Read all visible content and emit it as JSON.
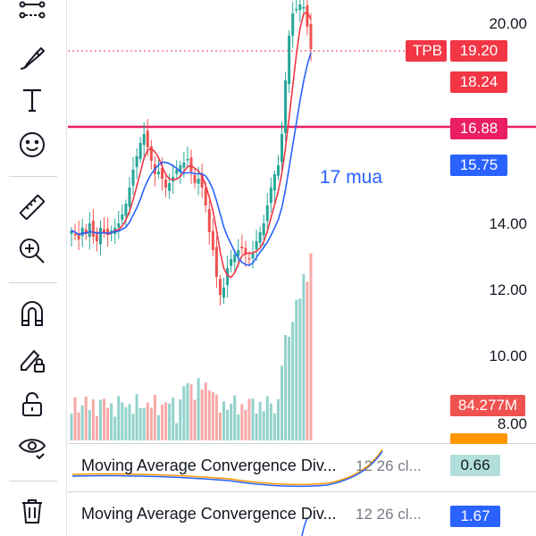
{
  "toolbar": {
    "tools": [
      {
        "name": "trend-line-tools-icon"
      },
      {
        "name": "brush-icon"
      },
      {
        "name": "text-tool-icon"
      },
      {
        "name": "emoji-icon"
      },
      {
        "name": "ruler-icon"
      },
      {
        "name": "zoom-in-icon"
      },
      {
        "name": "magnet-icon"
      },
      {
        "name": "lock-drawing-icon"
      },
      {
        "name": "unlock-icon"
      },
      {
        "name": "eye-icon"
      },
      {
        "name": "trash-icon"
      }
    ]
  },
  "chart": {
    "symbol_tag": "TPB",
    "last_price": "19.20",
    "ma_price": "18.24",
    "hline_price": "16.88",
    "ma2_price": "15.75",
    "volume_tag": "84.277M",
    "annotation": "17 mua",
    "axis_ticks": [
      "20.00",
      "14.00",
      "12.00",
      "10.00",
      "8.00"
    ],
    "colors": {
      "up": "#26a69a",
      "down": "#ef5350",
      "hline": "#e91e63",
      "ma_red": "#f23645",
      "ma_blue": "#2962ff",
      "last_tag": "#f23645",
      "hline_tag": "#e91e63",
      "blue_tag": "#2962ff",
      "volume_tag": "#ef5350"
    }
  },
  "indicators": [
    {
      "title": "Moving Average Convergence Div...",
      "params": "12 26 cl...",
      "value": "0.66",
      "value_bg": "#b2dfdb",
      "value_color": "#131722"
    },
    {
      "title": "Moving Average Convergence Div...",
      "params": "12 26 cl...",
      "value": "1.67",
      "value_bg": "#2962ff",
      "value_color": "#ffffff"
    }
  ]
}
